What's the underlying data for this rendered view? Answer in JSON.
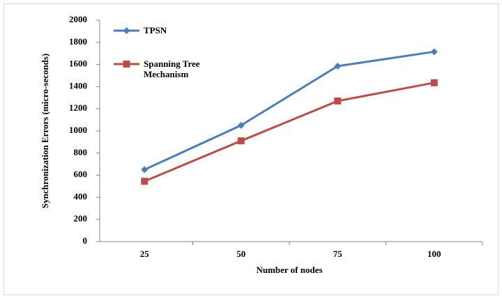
{
  "chart_data": {
    "type": "line",
    "x_label": "Number of nodes",
    "y_label": "Synchronization Errors (micro-seconds)",
    "categories": [
      "25",
      "50",
      "75",
      "100"
    ],
    "series": [
      {
        "name": "TPSN",
        "color": "#4a7ebb",
        "marker": "diamond",
        "values": [
          650,
          1050,
          1585,
          1715
        ]
      },
      {
        "name": "Spanning Tree Mechanism",
        "color": "#be4b48",
        "marker": "square",
        "values": [
          545,
          910,
          1270,
          1435
        ]
      }
    ],
    "ylim": [
      0,
      2000
    ],
    "yticks": [
      0,
      200,
      400,
      600,
      800,
      1000,
      1200,
      1400,
      1600,
      1800,
      2000
    ],
    "legend": "upper-left"
  }
}
